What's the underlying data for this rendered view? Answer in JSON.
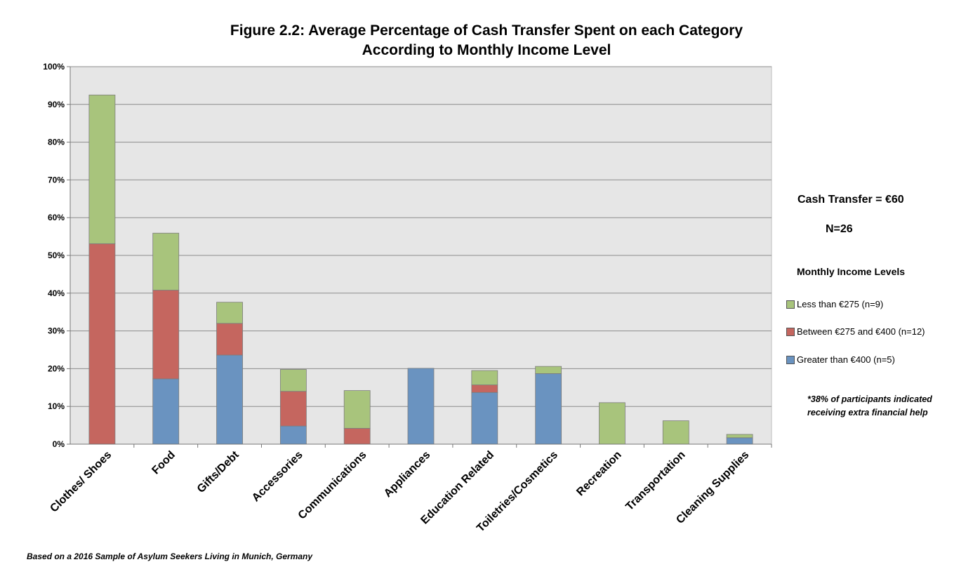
{
  "chart_data": {
    "type": "bar",
    "stacked": true,
    "title_lines": [
      "Figure 2.2: Average Percentage of Cash Transfer Spent on each Category",
      "According to Monthly Income Level"
    ],
    "categories": [
      "Clothes/ Shoes",
      "Food",
      "Gifts/Debt",
      "Accessories",
      "Communications",
      "Appliances",
      "Education Related",
      "Toiletries/Cosmetics",
      "Recreation",
      "Transportation",
      "Cleaning Supplies"
    ],
    "series": [
      {
        "name": "Greater than €400 (n=5)",
        "color": "#6a93c0",
        "values": [
          0,
          17.3,
          23.6,
          4.8,
          0,
          20.1,
          13.7,
          18.7,
          0,
          0,
          1.7
        ]
      },
      {
        "name": "Between €275 and €400 (n=12)",
        "color": "#c5665f",
        "values": [
          53.1,
          23.5,
          8.4,
          9.2,
          4.2,
          0,
          2.0,
          0,
          0,
          0,
          0
        ]
      },
      {
        "name": "Less than €275 (n=9)",
        "color": "#a8c47c",
        "values": [
          39.4,
          15.1,
          5.6,
          5.8,
          10.0,
          0,
          3.8,
          1.9,
          11.0,
          6.2,
          0.9
        ]
      }
    ],
    "ylim": [
      0,
      100
    ],
    "yticks": [
      "0%",
      "10%",
      "20%",
      "30%",
      "40%",
      "50%",
      "60%",
      "70%",
      "80%",
      "90%",
      "100%"
    ],
    "grid": true,
    "legend_position": "right",
    "legend_title": "Monthly Income Levels"
  },
  "side_text": {
    "transfer": "Cash Transfer = €60",
    "n": "N=26",
    "note": "*38% of participants indicated receiving extra financial help"
  },
  "footnote": "Based on a 2016 Sample of Asylum Seekers Living in Munich, Germany"
}
